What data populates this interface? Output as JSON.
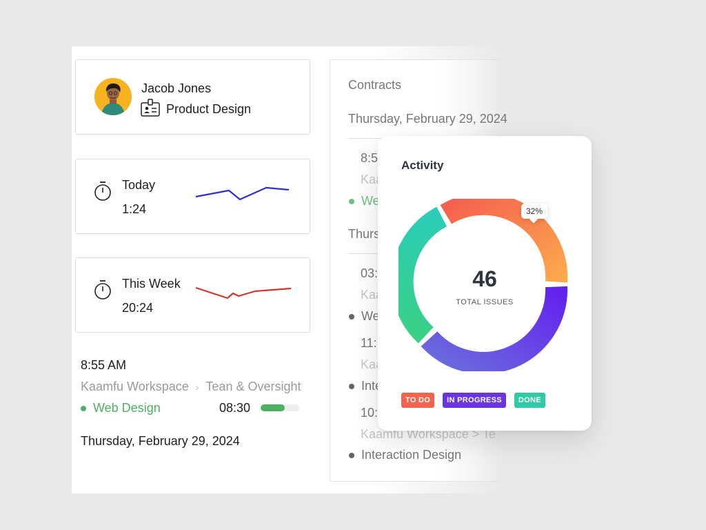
{
  "profile": {
    "name": "Jacob Jones",
    "role": "Product Design"
  },
  "timers": [
    {
      "label": "Today",
      "value": "1:24",
      "color": "#2e2fcf"
    },
    {
      "label": "This Week",
      "value": "20:24",
      "color": "#d9322b"
    }
  ],
  "entry": {
    "time": "8:55 AM",
    "workspace": "Kaamfu Workspace",
    "project": "Tean & Oversight",
    "tag": "Web Design",
    "duration": "08:30",
    "progress": 0.62,
    "date": "Thursday, February 29, 2024"
  },
  "contracts": {
    "title": "Contracts",
    "date1": "Thursday, February 29, 2024",
    "item1_time": "8:5",
    "item1_ws": "Kaa",
    "item1_tag": "We",
    "date2": "Thurs",
    "item2_time": "03:",
    "item2_ws": "Kaa",
    "item2_tag": "We",
    "item3_time": "11:",
    "item3_ws": "Kaa",
    "item3_tag": "Inte",
    "item4_time": "10:",
    "item4_ws": "Kaamfu Workspace  >  Te",
    "item4_tag": "Interaction Design"
  },
  "activity": {
    "title": "Activity",
    "total": "46",
    "total_label": "TOTAL ISSUES",
    "tooltip": "32%",
    "legend": [
      {
        "label": "TO DO",
        "color": "#f2644d"
      },
      {
        "label": "IN PROGRESS",
        "color": "#6a35e0"
      },
      {
        "label": "DONE",
        "color": "#2ecba6"
      }
    ]
  },
  "colors": {
    "green": "#4caf61",
    "todo": "#f2644d",
    "inprogress": "#6a35e0",
    "done": "#2ecba6"
  }
}
